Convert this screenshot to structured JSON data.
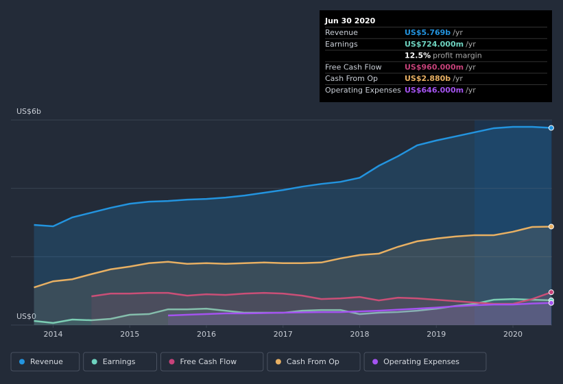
{
  "chart_data": {
    "type": "area",
    "x": [
      2013.75,
      2014,
      2014.25,
      2014.5,
      2014.75,
      2015,
      2015.25,
      2015.5,
      2015.75,
      2016,
      2016.25,
      2016.5,
      2016.75,
      2017,
      2017.25,
      2017.5,
      2017.75,
      2018,
      2018.25,
      2018.5,
      2018.75,
      2019,
      2019.25,
      2019.5,
      2019.75,
      2020,
      2020.25,
      2020.5
    ],
    "xlim": [
      2013.45,
      2020.51
    ],
    "xticks": [
      2014,
      2015,
      2016,
      2017,
      2018,
      2019,
      2020
    ],
    "ylim": [
      0,
      6
    ],
    "yticks": [
      {
        "value": 0,
        "label": "US$0"
      },
      {
        "value": 2,
        "label": null
      },
      {
        "value": 4,
        "label": null
      },
      {
        "value": 6,
        "label": "US$6b"
      }
    ],
    "grid": true,
    "series": [
      {
        "name": "Revenue",
        "color": "#2394df",
        "values": [
          2.93,
          2.89,
          3.15,
          3.29,
          3.43,
          3.55,
          3.61,
          3.63,
          3.67,
          3.69,
          3.73,
          3.79,
          3.87,
          3.95,
          4.05,
          4.13,
          4.19,
          4.31,
          4.66,
          4.94,
          5.26,
          5.4,
          5.52,
          5.64,
          5.76,
          5.8,
          5.8,
          5.769
        ]
      },
      {
        "name": "Earnings",
        "color": "#6ed3c0",
        "values": [
          0.12,
          0.06,
          0.16,
          0.14,
          0.18,
          0.3,
          0.32,
          0.46,
          0.46,
          0.48,
          0.42,
          0.36,
          0.36,
          0.36,
          0.42,
          0.44,
          0.44,
          0.32,
          0.36,
          0.38,
          0.42,
          0.48,
          0.56,
          0.62,
          0.74,
          0.76,
          0.74,
          0.724
        ]
      },
      {
        "name": "Free Cash Flow",
        "color": "#c7427a",
        "values": [
          null,
          null,
          null,
          0.84,
          0.92,
          0.92,
          0.94,
          0.94,
          0.86,
          0.9,
          0.88,
          0.92,
          0.94,
          0.92,
          0.86,
          0.76,
          0.78,
          0.82,
          0.72,
          0.8,
          0.78,
          0.74,
          0.7,
          0.66,
          0.62,
          0.62,
          0.76,
          0.96
        ]
      },
      {
        "name": "Cash From Op",
        "color": "#e8b063",
        "values": [
          1.1,
          1.28,
          1.34,
          1.49,
          1.63,
          1.71,
          1.81,
          1.85,
          1.79,
          1.81,
          1.79,
          1.81,
          1.83,
          1.81,
          1.81,
          1.83,
          1.95,
          2.05,
          2.09,
          2.29,
          2.45,
          2.53,
          2.59,
          2.63,
          2.63,
          2.73,
          2.87,
          2.88
        ]
      },
      {
        "name": "Operating Expenses",
        "color": "#a453f0",
        "values": [
          null,
          null,
          null,
          null,
          null,
          null,
          null,
          0.28,
          0.3,
          0.32,
          0.34,
          0.34,
          0.35,
          0.36,
          0.37,
          0.38,
          0.38,
          0.4,
          0.42,
          0.45,
          0.48,
          0.51,
          0.55,
          0.58,
          0.6,
          0.6,
          0.63,
          0.646
        ]
      }
    ],
    "tooltip": {
      "date": "Jun 30 2020",
      "rows": [
        {
          "name": "Revenue",
          "value": 5.769,
          "value_label": "US$5.769b",
          "unit": "/yr",
          "color": "#2394df"
        },
        {
          "name": "Earnings",
          "value": 0.724,
          "value_label": "US$724.000m",
          "unit": "/yr",
          "color": "#6ed3c0"
        },
        {
          "value": 12.5,
          "value_label": "12.5%",
          "unit": "profit margin",
          "color": "#ffffff"
        },
        {
          "name": "Free Cash Flow",
          "value": 0.96,
          "value_label": "US$960.000m",
          "unit": "/yr",
          "color": "#c7427a"
        },
        {
          "name": "Cash From Op",
          "value": 2.88,
          "value_label": "US$2.880b",
          "unit": "/yr",
          "color": "#e8b063"
        },
        {
          "name": "Operating Expenses",
          "value": 0.646,
          "value_label": "US$646.000m",
          "unit": "/yr",
          "color": "#a453f0"
        }
      ]
    }
  }
}
